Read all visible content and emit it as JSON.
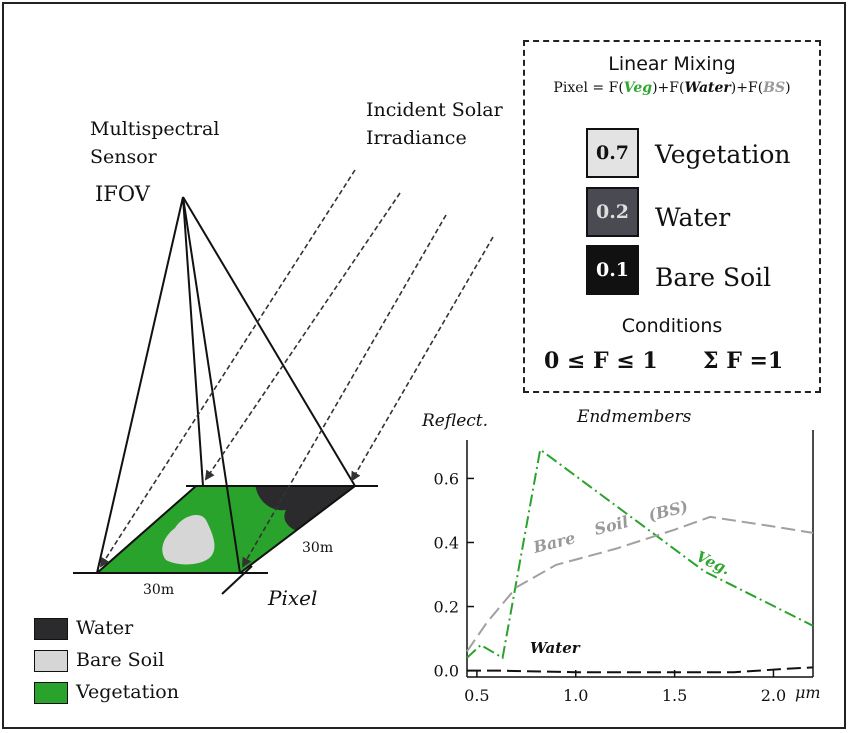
{
  "labels": {
    "sensor_line1": "Multispectral",
    "sensor_line2": "Sensor",
    "ifov": "IFOV",
    "solar_line1": "Incident Solar",
    "solar_line2": "Irradiance",
    "dim_bottom": "30m",
    "dim_side": "30m",
    "pixel": "Pixel"
  },
  "legend": [
    {
      "label": "Water",
      "color": "#2b2b2d"
    },
    {
      "label": "Bare Soil",
      "color": "#d6d6d6"
    },
    {
      "label": "Vegetation",
      "color": "#29a32b"
    }
  ],
  "mixing": {
    "title": "Linear Mixing",
    "eq_prefix": "Pixel = F(",
    "eq_veg": "Veg",
    "eq_mid1": ")+F(",
    "eq_water": "Water",
    "eq_mid2": ")+F(",
    "eq_bs": "BS",
    "eq_suffix": ")",
    "fractions": [
      {
        "value": "0.7",
        "label": "Vegetation",
        "fill": "#e3e3e3",
        "text_color": "#111111"
      },
      {
        "value": "0.2",
        "label": "Water",
        "fill": "#4a4b52",
        "text_color": "#dddddd"
      },
      {
        "value": "0.1",
        "label": "Bare Soil",
        "fill": "#111111",
        "text_color": "#ffffff"
      }
    ],
    "conditions_title": "Conditions",
    "condition1": "0 ≤ F ≤ 1",
    "condition2": "Σ F =1"
  },
  "colors": {
    "vegetation": "#29a32b",
    "bare_soil": "#d6d6d6",
    "water": "#2b2b2d",
    "veg_label": "#2fa82f",
    "bs_label": "#999999"
  },
  "chart_data": {
    "type": "line",
    "title": "Endmembers",
    "ylabel": "Reflect.",
    "xlabel": "μm",
    "xlim": [
      0.45,
      2.2
    ],
    "ylim": [
      -0.02,
      0.72
    ],
    "x_ticks": [
      0.5,
      1.0,
      1.5,
      2.0
    ],
    "x_tick_labels": [
      "0.5",
      "1.0",
      "1.5",
      "2.0"
    ],
    "y_ticks": [
      0.0,
      0.2,
      0.4,
      0.6
    ],
    "y_tick_labels": [
      "0.0",
      "0.2",
      "0.4",
      "0.6"
    ],
    "series": [
      {
        "name": "Veg.",
        "color": "#29a32b",
        "dash": "dashdot",
        "x": [
          0.45,
          0.52,
          0.63,
          0.82,
          1.65,
          2.2
        ],
        "y": [
          0.04,
          0.08,
          0.04,
          0.69,
          0.31,
          0.14
        ]
      },
      {
        "name": "Bare Soil (BS)",
        "color": "#a0a0a0",
        "dash": "dashed",
        "x": [
          0.45,
          0.55,
          0.7,
          0.9,
          1.2,
          1.5,
          1.68,
          2.0,
          2.2
        ],
        "y": [
          0.06,
          0.15,
          0.26,
          0.33,
          0.38,
          0.44,
          0.48,
          0.45,
          0.43
        ]
      },
      {
        "name": "Water",
        "color": "#111111",
        "dash": "dashed",
        "x": [
          0.45,
          0.6,
          1.0,
          1.5,
          1.8,
          2.05,
          2.2
        ],
        "y": [
          0.0,
          0.0,
          -0.005,
          -0.005,
          -0.005,
          0.005,
          0.01
        ]
      }
    ]
  }
}
